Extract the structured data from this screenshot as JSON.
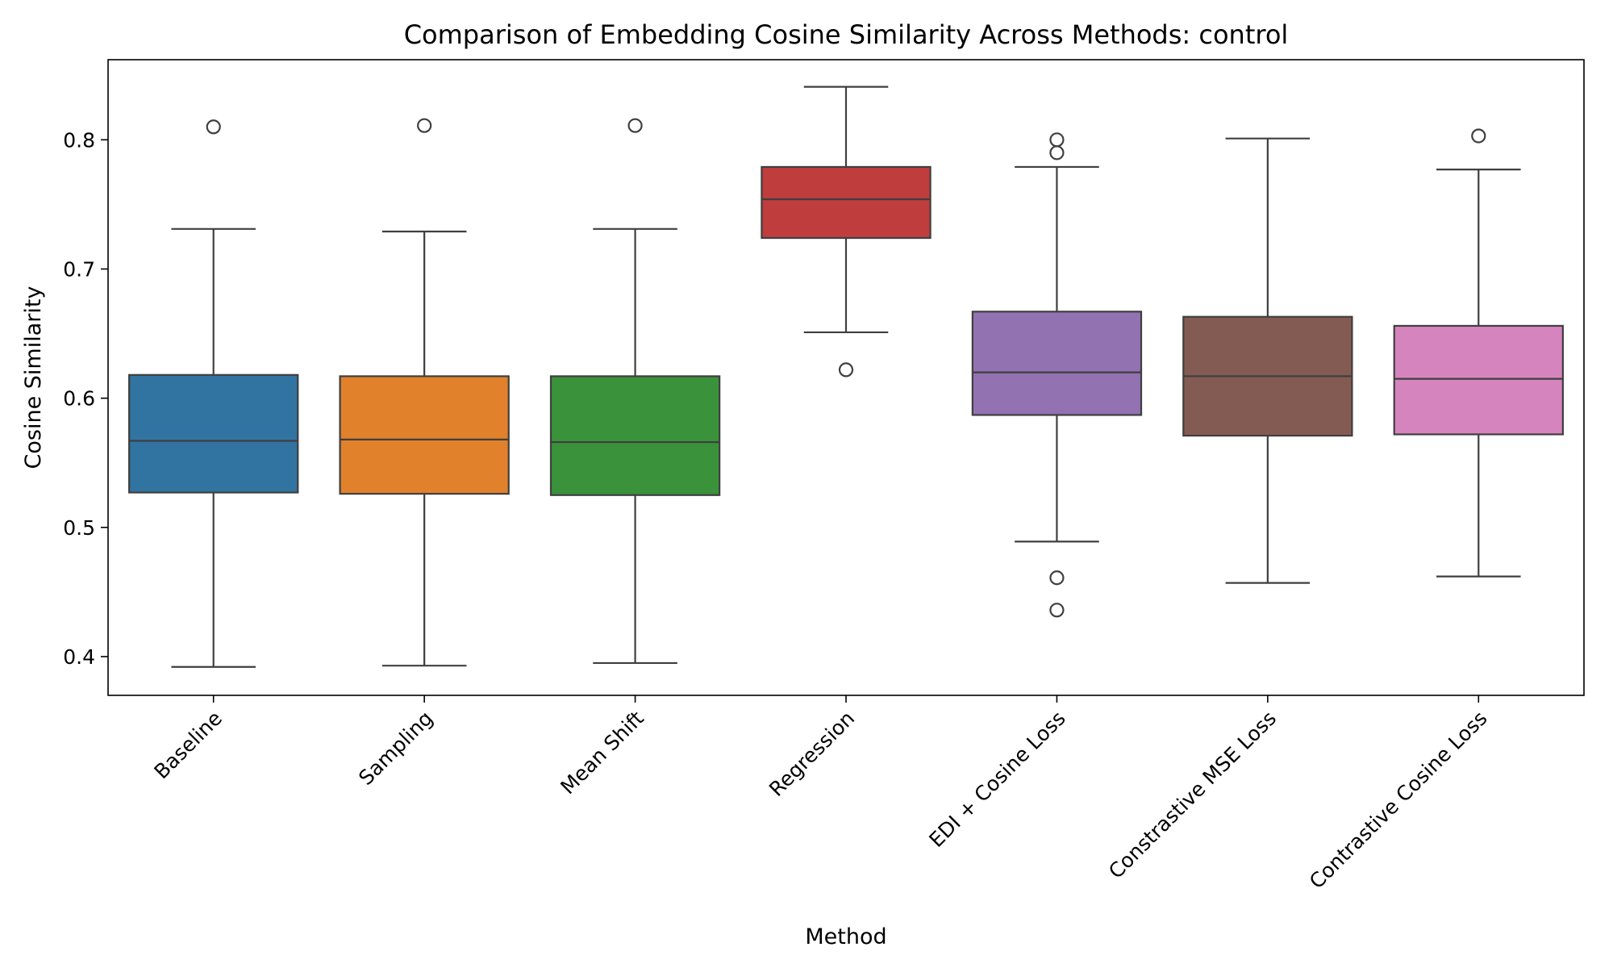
{
  "chart_data": {
    "type": "box",
    "title": "Comparison of Embedding Cosine Similarity Across Methods: control",
    "xlabel": "Method",
    "ylabel": "Cosine Similarity",
    "ylim": [
      0.37,
      0.862
    ],
    "yticks": [
      {
        "value": 0.4,
        "label": "0.4"
      },
      {
        "value": 0.5,
        "label": "0.5"
      },
      {
        "value": 0.6,
        "label": "0.6"
      },
      {
        "value": 0.7,
        "label": "0.7"
      },
      {
        "value": 0.8,
        "label": "0.8"
      }
    ],
    "grid": false,
    "legend": "none",
    "series": [
      {
        "label": "Baseline",
        "color": "#3274a1",
        "whisker_low": 0.392,
        "q1": 0.527,
        "median": 0.567,
        "q3": 0.618,
        "whisker_high": 0.731,
        "outliers": [
          0.81
        ]
      },
      {
        "label": "Sampling",
        "color": "#e1812c",
        "whisker_low": 0.393,
        "q1": 0.526,
        "median": 0.568,
        "q3": 0.617,
        "whisker_high": 0.729,
        "outliers": [
          0.811
        ]
      },
      {
        "label": "Mean Shift",
        "color": "#3a923a",
        "whisker_low": 0.395,
        "q1": 0.525,
        "median": 0.566,
        "q3": 0.617,
        "whisker_high": 0.731,
        "outliers": [
          0.811
        ]
      },
      {
        "label": "Regression",
        "color": "#c03d3e",
        "whisker_low": 0.651,
        "q1": 0.724,
        "median": 0.754,
        "q3": 0.779,
        "whisker_high": 0.841,
        "outliers": [
          0.622
        ]
      },
      {
        "label": "EDI + Cosine Loss",
        "color": "#9372b2",
        "whisker_low": 0.489,
        "q1": 0.587,
        "median": 0.62,
        "q3": 0.667,
        "whisker_high": 0.779,
        "outliers": [
          0.8,
          0.79,
          0.461,
          0.436
        ]
      },
      {
        "label": "Constrastive MSE Loss",
        "color": "#845b53",
        "whisker_low": 0.457,
        "q1": 0.571,
        "median": 0.617,
        "q3": 0.663,
        "whisker_high": 0.801,
        "outliers": []
      },
      {
        "label": "Contrastive Cosine Loss",
        "color": "#d684bd",
        "whisker_low": 0.462,
        "q1": 0.572,
        "median": 0.615,
        "q3": 0.656,
        "whisker_high": 0.777,
        "outliers": [
          0.803
        ]
      }
    ]
  }
}
